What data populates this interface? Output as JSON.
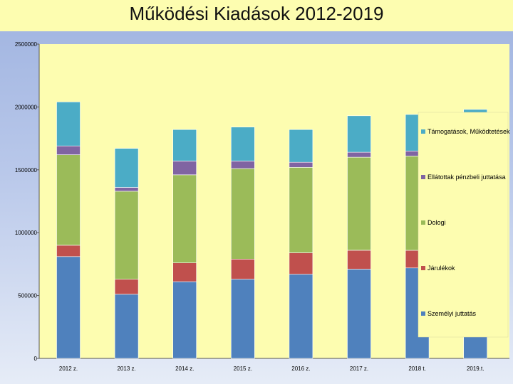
{
  "chart_data": {
    "type": "bar",
    "stacked": true,
    "title": "Működési Kiadások  2012-2019",
    "categories": [
      "2012 z.",
      "2013 z.",
      "2014 z.",
      "2015 z.",
      "2016 z.",
      "2017 z.",
      "2018 t.",
      "2019.t."
    ],
    "ylim": [
      0,
      2500000
    ],
    "yticks": [
      "0",
      "500000",
      "1000000",
      "1500000",
      "2000000",
      "2500000"
    ],
    "ytick_values": [
      0,
      500000,
      1000000,
      1500000,
      2000000,
      2500000
    ],
    "grid": false,
    "legend_position": "right",
    "series": [
      {
        "name": "Személyi juttatás",
        "color": "#4f81bd",
        "values": [
          810000,
          510000,
          610000,
          630000,
          670000,
          710000,
          720000,
          720000
        ]
      },
      {
        "name": "Járulékok",
        "color": "#c0504d",
        "values": [
          90000,
          120000,
          150000,
          160000,
          170000,
          150000,
          140000,
          130000
        ]
      },
      {
        "name": "Dologi",
        "color": "#9bbb59",
        "values": [
          720000,
          700000,
          700000,
          720000,
          680000,
          740000,
          750000,
          750000
        ]
      },
      {
        "name": "Ellátottak pénzbeli juttatása",
        "color": "#8064a2",
        "values": [
          70000,
          30000,
          110000,
          60000,
          40000,
          40000,
          40000,
          40000
        ]
      },
      {
        "name": "Támogatások, Működtetések",
        "color": "#4bacc6",
        "values": [
          350000,
          310000,
          250000,
          270000,
          260000,
          290000,
          290000,
          340000
        ]
      }
    ]
  },
  "legend": {
    "items": [
      "Támogatások, Működtetések",
      "Ellátottak pénzbeli juttatása",
      "Dologi",
      "Járulékok",
      "Személyi juttatás"
    ],
    "colors": [
      "#4bacc6",
      "#8064a2",
      "#9bbb59",
      "#c0504d",
      "#4f81bd"
    ]
  }
}
